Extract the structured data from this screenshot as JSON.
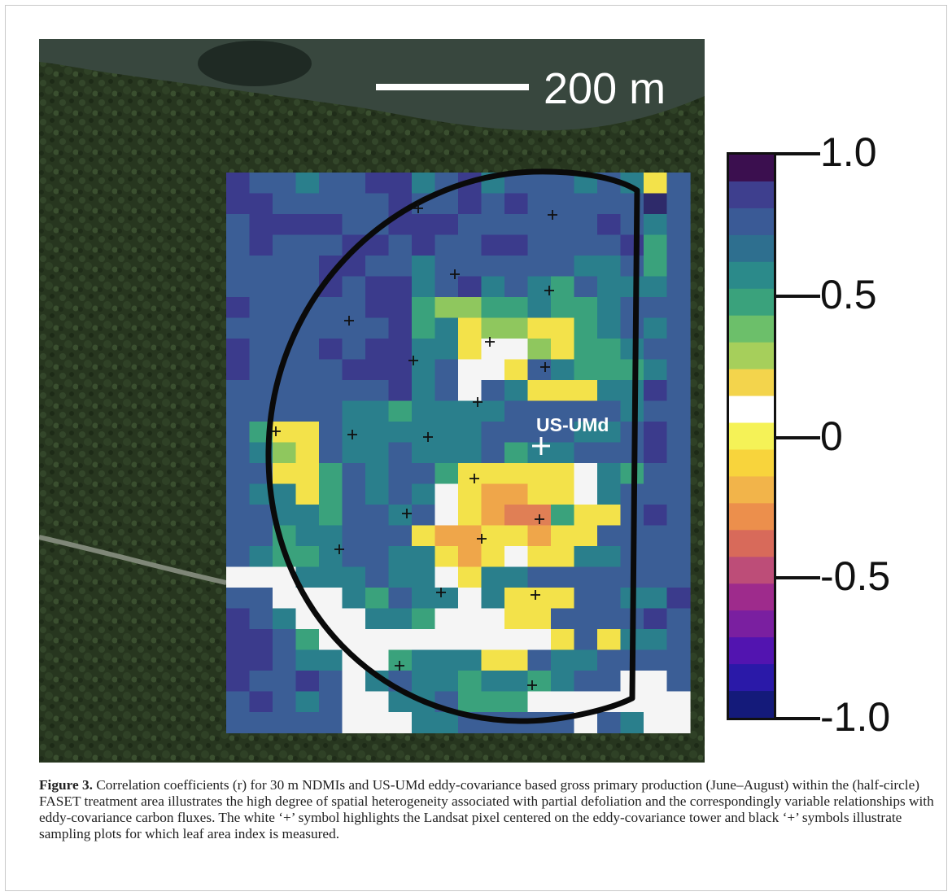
{
  "figure": {
    "scale_bar_label": "200 m",
    "tower_label": "US-UMd",
    "colorbar": {
      "labels": [
        "1.0",
        "0.5",
        "0",
        "-0.5",
        "-1.0"
      ],
      "colors": [
        "#3b0f4f",
        "#3e3f8e",
        "#3a5a96",
        "#2e6f8f",
        "#2b8a8a",
        "#3aa27c",
        "#6cbf6a",
        "#a6cf5b",
        "#f3d44c",
        "#ffffff",
        "#f5f257",
        "#f8d43c",
        "#f2b44a",
        "#ec8f4c",
        "#d86a5a",
        "#bd4d78",
        "#9e2b8c",
        "#7a1fa0",
        "#5214b0",
        "#2a19a8",
        "#141a7a"
      ],
      "color_min": "#141a7a",
      "color_max": "#3b0f4f"
    },
    "colors": {
      "forest": "#26351f",
      "water": "#38473e",
      "tower_marker": "#ffffff",
      "plot_marker": "#111111",
      "outline": "#0a0a0a"
    },
    "raster_rows": [
      "A88C88AAC8AC888C8CY8",
      "AA88888A88A8A88888D8",
      "8AAAA88AAA888888A8C8",
      "8A888AA8A88AA8888AE8",
      "8888AA88C888888CC8E8",
      "8888A8AAC8AC8CE8CCC8",
      "A88888AAEGGEECEEC888",
      "8888888AECYGGYYEC8C8",
      "A888A8AACCYWWGYEEC88",
      "A8888AAAC8WWY8CEEEC8",
      "8888888AC8W8CYYYCCA8",
      "88888CCECCCC88888C88",
      "8EYY8CCCCCC8888CC8A8",
      "8CGY8CC8CCC8ECC888A8",
      "88YYE8C88EYYYYYWCE88",
      "8CCYE8C8CWYOOYYWC888",
      "88CCE88C8WYOSSEYY8A8",
      "88ECC888YOOYYOYY8888",
      "8CEEC88CCYOYWYYCC888",
      "WWWCCC8CCWYCC8888888",
      "88WWWCE8CCWCYYY88CCA",
      "A8CWWWCCEWWWYY8888A8",
      "AA8EWWWWWWWWWWY8YCC8",
      "AA8CCWWECCCYY8CC8888",
      "A88A8WC8CCECCEC88WW8",
      "8A8C8WWCC8EEEWWWWWWW",
      "88888WWWCC88888W8CWW"
    ],
    "plot_markers": [
      [
        0.6,
        0.8
      ],
      [
        0.3,
        0.3
      ],
      [
        0.3,
        0.8
      ],
      [
        0.35,
        0.65
      ],
      [
        0.1,
        0.6
      ],
      [
        0.3,
        0.4
      ],
      [
        0.4,
        0.55
      ],
      [
        0.25,
        0.7
      ],
      [
        0.35,
        0.55
      ],
      [
        0.3,
        0.5
      ],
      [
        0.2,
        0.45
      ],
      [
        0.45,
        0.45
      ],
      [
        0.45,
        0.55
      ],
      [
        0.4,
        0.35
      ],
      [
        0.25,
        0.55
      ],
      [
        0.2,
        0.35
      ],
      [
        0.15,
        0.5
      ],
      [
        0.25,
        0.3
      ],
      [
        0.2,
        0.2
      ],
      [
        0.3,
        0.65
      ],
      [
        0.45,
        0.65
      ],
      [
        0.5,
        0.45
      ],
      [
        0.5,
        0.3
      ],
      [
        0.55,
        0.6
      ],
      [
        0.55,
        0.45
      ]
    ]
  },
  "caption": {
    "label": "Figure 3.",
    "text": " Correlation coefficients (r) for 30 m NDMIs and US-UMd eddy-covariance based gross primary production (June–August) within the (half-circle) FASET treatment area illustrates the high degree of spatial heterogeneity associated with partial defoliation and the correspondingly variable relationships with eddy-covariance carbon fluxes. The white ‘+’ symbol highlights the Landsat pixel centered on the eddy-covariance tower and black ‘+’ symbols illustrate sampling plots for which leaf area index is measured."
  }
}
